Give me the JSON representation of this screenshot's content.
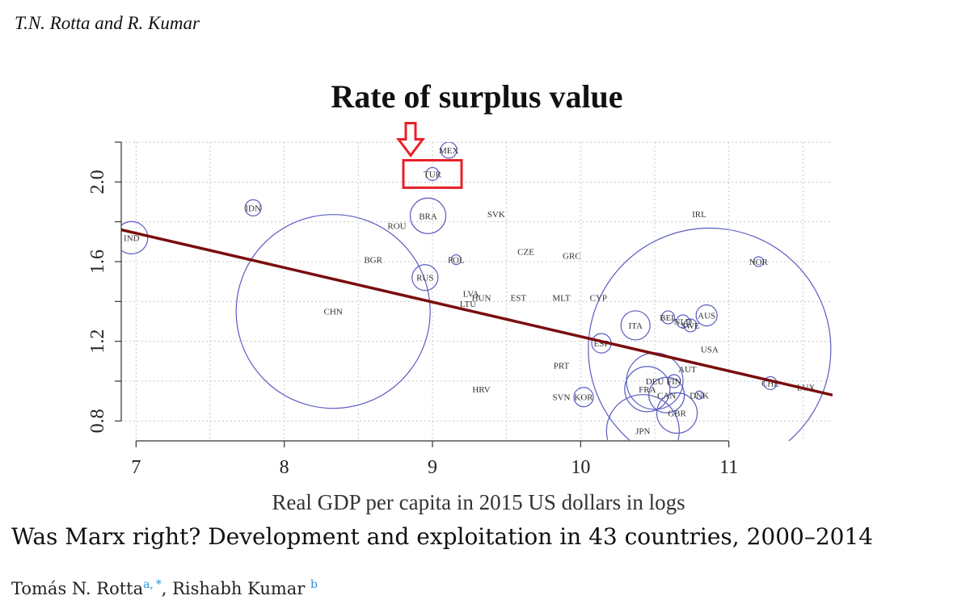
{
  "header": {
    "author_line": "T.N. Rotta and R. Kumar"
  },
  "chart_data": {
    "type": "scatter",
    "title": "Rate of surplus value",
    "xlabel": "Real GDP per capita in 2015 US dollars in logs",
    "ylabel": "",
    "xlim": [
      6.9,
      11.7
    ],
    "ylim": [
      0.7,
      2.2
    ],
    "x_ticks": [
      7,
      8,
      9,
      10,
      11
    ],
    "y_ticks": [
      0.8,
      1.2,
      1.6,
      2.0
    ],
    "x_tick_labels": [
      "7",
      "8",
      "9",
      "10",
      "11"
    ],
    "y_tick_labels": [
      "0.8",
      "1.2",
      "1.6",
      "2.0"
    ],
    "grid": true,
    "bubble_size_note": "bubble radius proportional to country size",
    "points": [
      {
        "label": "IND",
        "x": 6.97,
        "y": 1.72,
        "size": 20
      },
      {
        "label": "IDN",
        "x": 7.79,
        "y": 1.87,
        "size": 10
      },
      {
        "label": "BGR",
        "x": 8.6,
        "y": 1.61,
        "size": 0
      },
      {
        "label": "CHN",
        "x": 8.33,
        "y": 1.35,
        "size": 120
      },
      {
        "label": "MEX",
        "x": 9.11,
        "y": 2.16,
        "size": 10
      },
      {
        "label": "TUR",
        "x": 9.0,
        "y": 2.04,
        "size": 8
      },
      {
        "label": "BRA",
        "x": 8.97,
        "y": 1.83,
        "size": 22
      },
      {
        "label": "ROU",
        "x": 8.76,
        "y": 1.78,
        "size": 0
      },
      {
        "label": "SVK",
        "x": 9.43,
        "y": 1.84,
        "size": 0
      },
      {
        "label": "POL",
        "x": 9.16,
        "y": 1.61,
        "size": 6
      },
      {
        "label": "CZE",
        "x": 9.63,
        "y": 1.65,
        "size": 0
      },
      {
        "label": "GRC",
        "x": 9.94,
        "y": 1.63,
        "size": 0
      },
      {
        "label": "RUS",
        "x": 8.95,
        "y": 1.52,
        "size": 16
      },
      {
        "label": "LVA",
        "x": 9.26,
        "y": 1.44,
        "size": 0
      },
      {
        "label": "LTU",
        "x": 9.24,
        "y": 1.39,
        "size": 0
      },
      {
        "label": "HUN",
        "x": 9.33,
        "y": 1.42,
        "size": 0
      },
      {
        "label": "EST",
        "x": 9.58,
        "y": 1.42,
        "size": 0
      },
      {
        "label": "MLT",
        "x": 9.87,
        "y": 1.42,
        "size": 0
      },
      {
        "label": "CYP",
        "x": 10.12,
        "y": 1.42,
        "size": 0
      },
      {
        "label": "IRL",
        "x": 10.8,
        "y": 1.84,
        "size": 0
      },
      {
        "label": "NOR",
        "x": 11.2,
        "y": 1.6,
        "size": 6
      },
      {
        "label": "BEL",
        "x": 10.59,
        "y": 1.32,
        "size": 8
      },
      {
        "label": "NLD",
        "x": 10.69,
        "y": 1.3,
        "size": 8
      },
      {
        "label": "SWE",
        "x": 10.74,
        "y": 1.28,
        "size": 8
      },
      {
        "label": "AUS",
        "x": 10.85,
        "y": 1.33,
        "size": 13
      },
      {
        "label": "ITA",
        "x": 10.37,
        "y": 1.28,
        "size": 18
      },
      {
        "label": "ESP",
        "x": 10.14,
        "y": 1.19,
        "size": 12
      },
      {
        "label": "USA",
        "x": 10.87,
        "y": 1.16,
        "size": 150
      },
      {
        "label": "AUT",
        "x": 10.72,
        "y": 1.06,
        "size": 0
      },
      {
        "label": "PRT",
        "x": 9.87,
        "y": 1.08,
        "size": 0
      },
      {
        "label": "DEU",
        "x": 10.5,
        "y": 1.0,
        "size": 35
      },
      {
        "label": "FIN",
        "x": 10.63,
        "y": 1.0,
        "size": 8
      },
      {
        "label": "FRA",
        "x": 10.45,
        "y": 0.96,
        "size": 28
      },
      {
        "label": "CAN",
        "x": 10.58,
        "y": 0.93,
        "size": 22
      },
      {
        "label": "DNK",
        "x": 10.8,
        "y": 0.93,
        "size": 5
      },
      {
        "label": "GBR",
        "x": 10.65,
        "y": 0.84,
        "size": 25
      },
      {
        "label": "JPN",
        "x": 10.42,
        "y": 0.75,
        "size": 45
      },
      {
        "label": "CHE",
        "x": 11.28,
        "y": 0.99,
        "size": 8
      },
      {
        "label": "LUX",
        "x": 11.52,
        "y": 0.97,
        "size": 0
      },
      {
        "label": "HRV",
        "x": 9.33,
        "y": 0.96,
        "size": 0
      },
      {
        "label": "SVN",
        "x": 9.87,
        "y": 0.92,
        "size": 0
      },
      {
        "label": "KOR",
        "x": 10.02,
        "y": 0.92,
        "size": 12
      }
    ],
    "trend_line": {
      "x": [
        6.9,
        11.7
      ],
      "y": [
        1.76,
        0.93
      ],
      "color": "#7a0e0e"
    },
    "highlight": {
      "label": "TUR",
      "color": "#e8202a"
    },
    "bubble_color": "#5a5cc0"
  },
  "paper": {
    "title": "Was Marx right? Development and exploitation in 43 countries, 2000–2014",
    "author1": "Tomás N. Rotta",
    "author1_sup": "a, *",
    "separator": ", ",
    "author2": "Rishabh Kumar",
    "author2_sup": "b"
  }
}
